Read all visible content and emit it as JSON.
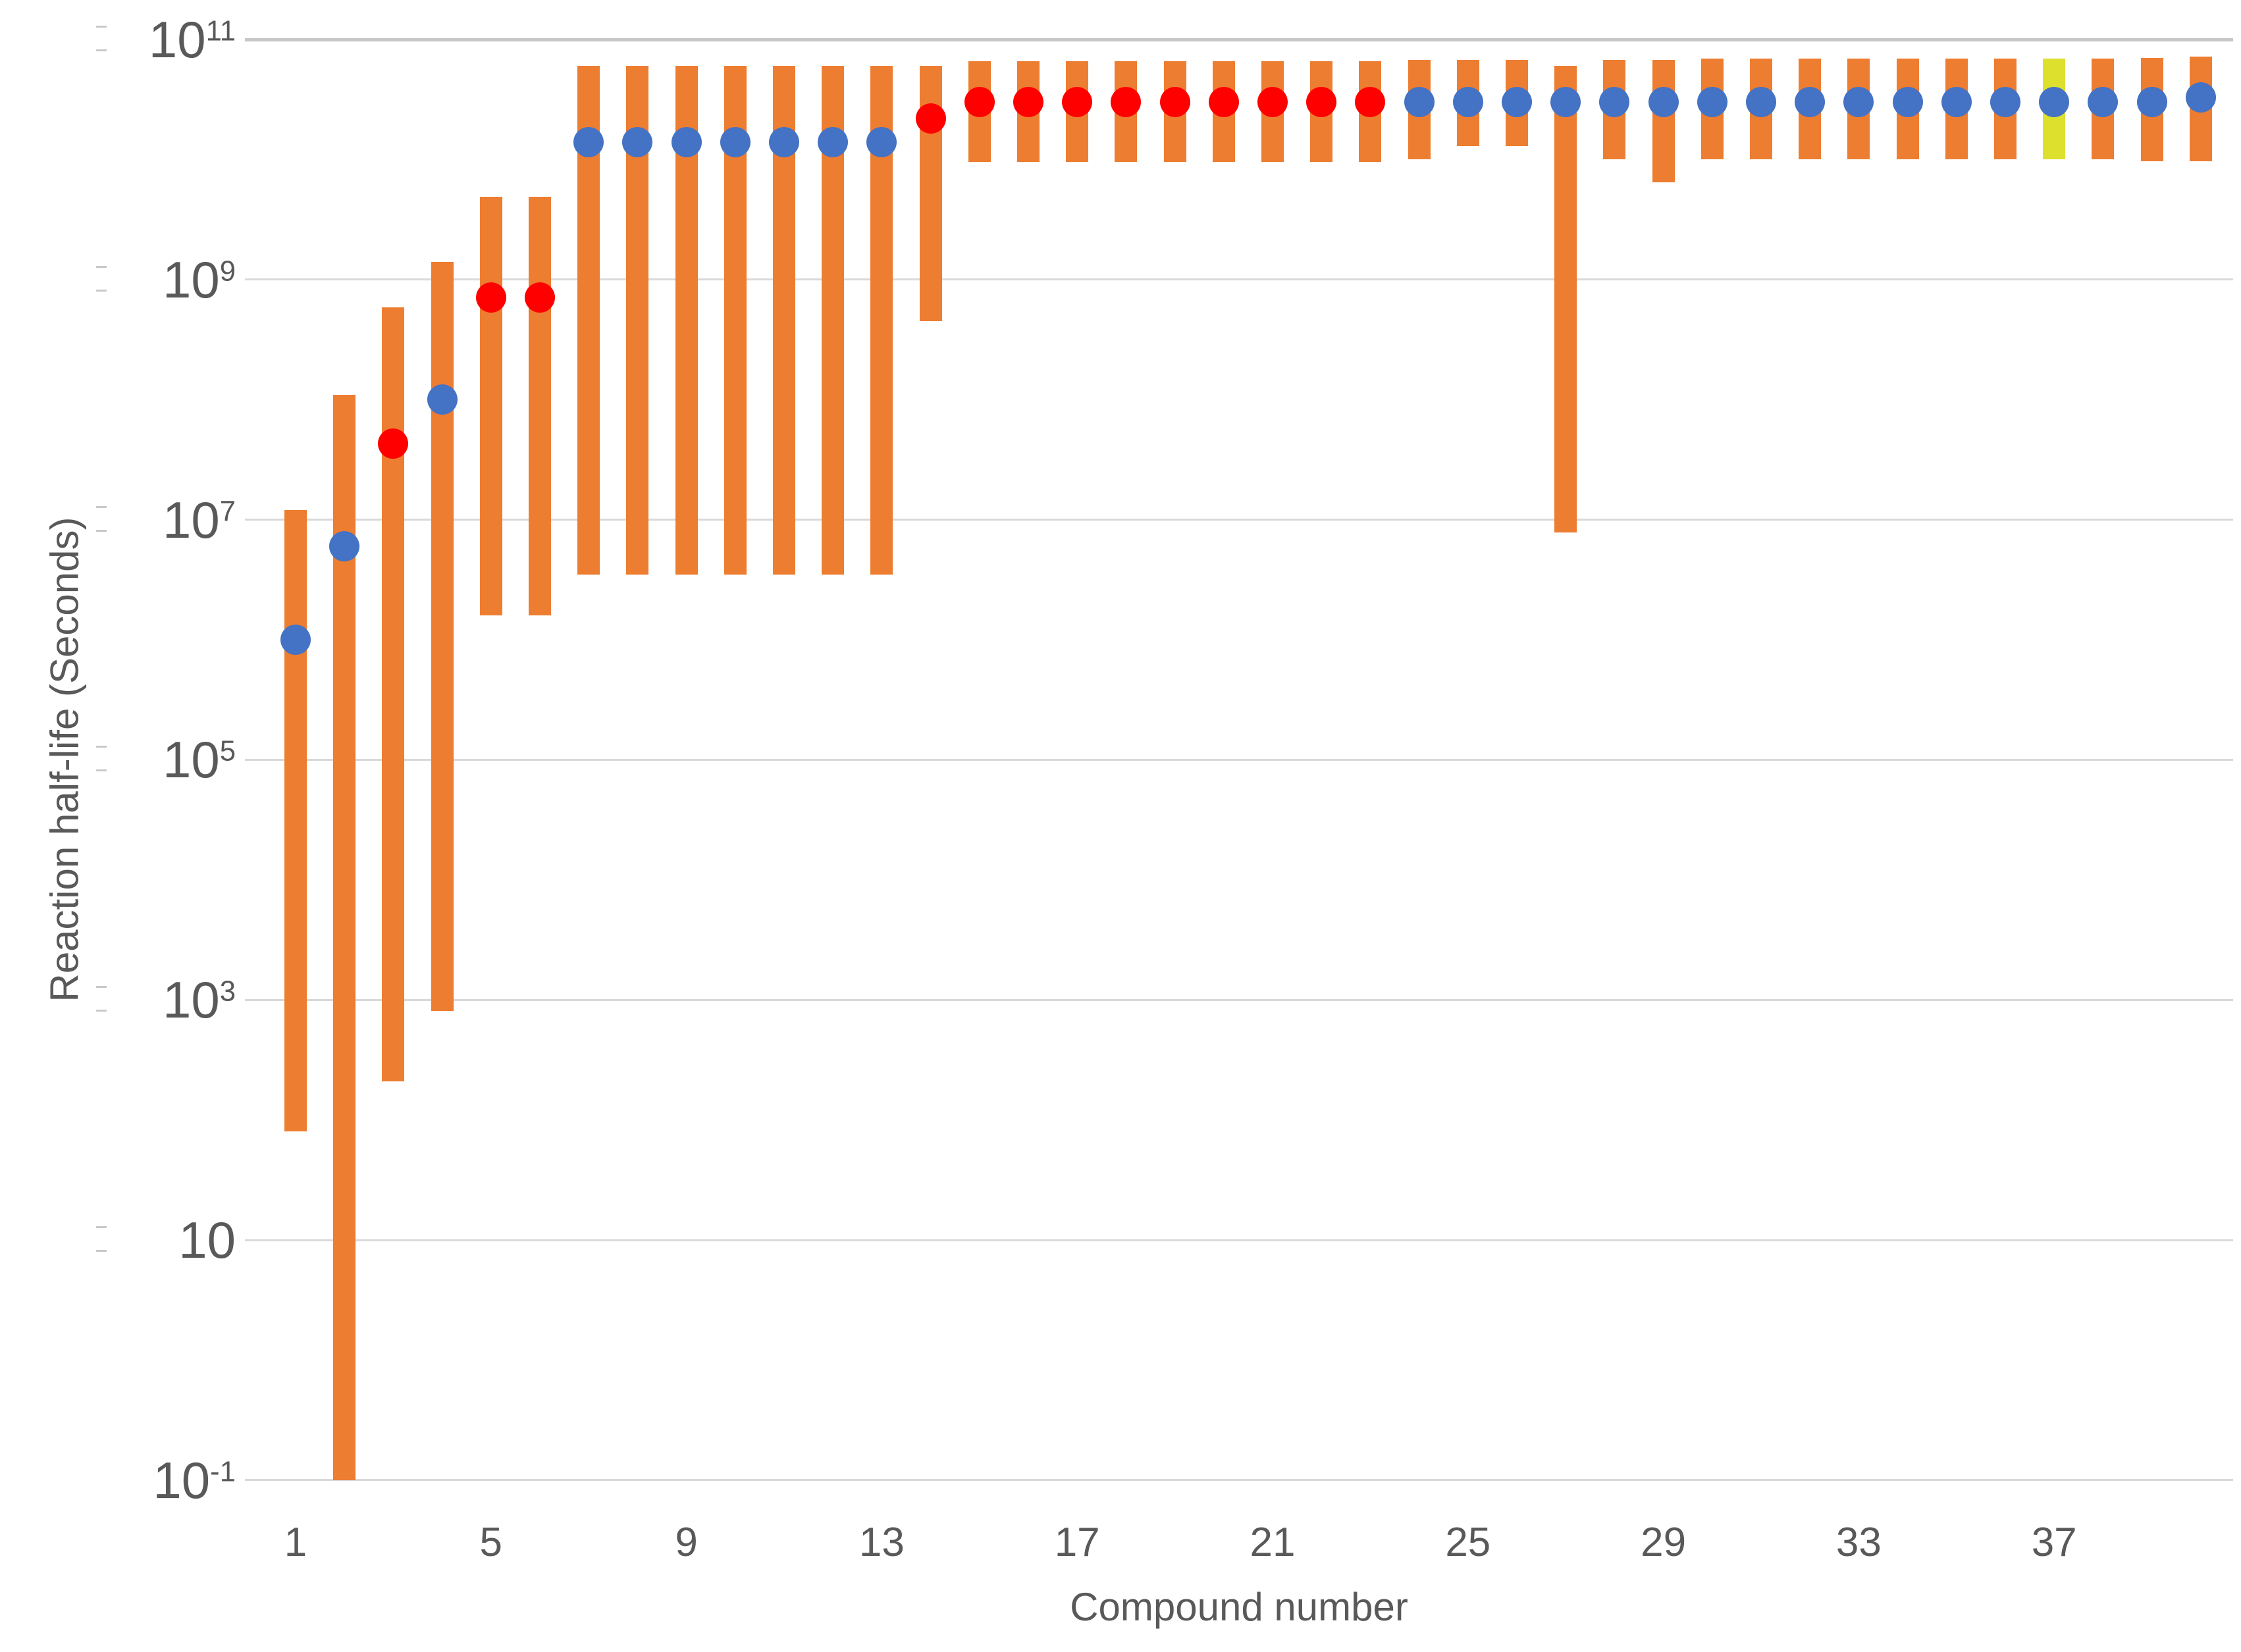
{
  "chart_data": {
    "type": "bar",
    "subtype": "floating-range-bars-with-markers",
    "title": "",
    "xlabel": "Compound number",
    "ylabel": "Reaction half-life (Seconds)",
    "y_scale": "log10",
    "ylim_exp": [
      -1,
      11
    ],
    "y_tick_exponents": [
      11,
      9,
      7,
      5,
      3,
      1,
      -1
    ],
    "x_tick_labels": [
      "1",
      "5",
      "9",
      "13",
      "17",
      "21",
      "25",
      "29",
      "33",
      "37"
    ],
    "grid": true,
    "legend": "none",
    "colors": {
      "bar_orange": "#ED7D31",
      "bar_yellow": "#DDE02C",
      "marker_blue": "#4472C4",
      "marker_red": "#FF0000",
      "gridline": "#D9D9D9",
      "gridline_top": "#C7C7C7",
      "axis_text": "#595959",
      "background": "#FFFFFF"
    },
    "compounds": [
      {
        "n": 1,
        "low": 80.0,
        "high": 12000000.0,
        "marker": 1000000.0,
        "marker_color": "blue",
        "bar": "orange"
      },
      {
        "n": 2,
        "low": 0.1,
        "high": 110000000.0,
        "marker": 6000000.0,
        "marker_color": "blue",
        "bar": "orange"
      },
      {
        "n": 3,
        "low": 210.0,
        "high": 590000000.0,
        "marker": 43000000.0,
        "marker_color": "red",
        "bar": "orange"
      },
      {
        "n": 4,
        "low": 810.0,
        "high": 1400000000.0,
        "marker": 100000000.0,
        "marker_color": "blue",
        "bar": "orange"
      },
      {
        "n": 5,
        "low": 1600000.0,
        "high": 4900000000.0,
        "marker": 710000000.0,
        "marker_color": "red",
        "bar": "orange"
      },
      {
        "n": 6,
        "low": 1600000.0,
        "high": 4900000000.0,
        "marker": 710000000.0,
        "marker_color": "red",
        "bar": "orange"
      },
      {
        "n": 7,
        "low": 3500000.0,
        "high": 60000000000.0,
        "marker": 14000000000.0,
        "marker_color": "blue",
        "bar": "orange"
      },
      {
        "n": 8,
        "low": 3500000.0,
        "high": 60000000000.0,
        "marker": 14000000000.0,
        "marker_color": "blue",
        "bar": "orange"
      },
      {
        "n": 9,
        "low": 3500000.0,
        "high": 60000000000.0,
        "marker": 14000000000.0,
        "marker_color": "blue",
        "bar": "orange"
      },
      {
        "n": 10,
        "low": 3500000.0,
        "high": 60000000000.0,
        "marker": 14000000000.0,
        "marker_color": "blue",
        "bar": "orange"
      },
      {
        "n": 11,
        "low": 3500000.0,
        "high": 60000000000.0,
        "marker": 14000000000.0,
        "marker_color": "blue",
        "bar": "orange"
      },
      {
        "n": 12,
        "low": 3500000.0,
        "high": 60000000000.0,
        "marker": 14000000000.0,
        "marker_color": "blue",
        "bar": "orange"
      },
      {
        "n": 13,
        "low": 3500000.0,
        "high": 60000000000.0,
        "marker": 14000000000.0,
        "marker_color": "blue",
        "bar": "orange"
      },
      {
        "n": 14,
        "low": 450000000.0,
        "high": 60000000000.0,
        "marker": 22000000000.0,
        "marker_color": "red",
        "bar": "orange"
      },
      {
        "n": 15,
        "low": 9500000000.0,
        "high": 66000000000.0,
        "marker": 30000000000.0,
        "marker_color": "red",
        "bar": "orange"
      },
      {
        "n": 16,
        "low": 9500000000.0,
        "high": 66000000000.0,
        "marker": 30000000000.0,
        "marker_color": "red",
        "bar": "orange"
      },
      {
        "n": 17,
        "low": 9500000000.0,
        "high": 66000000000.0,
        "marker": 30000000000.0,
        "marker_color": "red",
        "bar": "orange"
      },
      {
        "n": 18,
        "low": 9500000000.0,
        "high": 66000000000.0,
        "marker": 30000000000.0,
        "marker_color": "red",
        "bar": "orange"
      },
      {
        "n": 19,
        "low": 9500000000.0,
        "high": 66000000000.0,
        "marker": 30000000000.0,
        "marker_color": "red",
        "bar": "orange"
      },
      {
        "n": 20,
        "low": 9500000000.0,
        "high": 66000000000.0,
        "marker": 30000000000.0,
        "marker_color": "red",
        "bar": "orange"
      },
      {
        "n": 21,
        "low": 9500000000.0,
        "high": 66000000000.0,
        "marker": 30000000000.0,
        "marker_color": "red",
        "bar": "orange"
      },
      {
        "n": 22,
        "low": 9500000000.0,
        "high": 66000000000.0,
        "marker": 30000000000.0,
        "marker_color": "red",
        "bar": "orange"
      },
      {
        "n": 23,
        "low": 9500000000.0,
        "high": 66000000000.0,
        "marker": 30000000000.0,
        "marker_color": "red",
        "bar": "orange"
      },
      {
        "n": 24,
        "low": 10000000000.0,
        "high": 68000000000.0,
        "marker": 30000000000.0,
        "marker_color": "blue",
        "bar": "orange"
      },
      {
        "n": 25,
        "low": 13000000000.0,
        "high": 68000000000.0,
        "marker": 30000000000.0,
        "marker_color": "blue",
        "bar": "orange"
      },
      {
        "n": 26,
        "low": 13000000000.0,
        "high": 68000000000.0,
        "marker": 30000000000.0,
        "marker_color": "blue",
        "bar": "orange"
      },
      {
        "n": 27,
        "low": 7800000.0,
        "high": 60000000000.0,
        "marker": 30000000000.0,
        "marker_color": "blue",
        "bar": "orange"
      },
      {
        "n": 28,
        "low": 10000000000.0,
        "high": 68000000000.0,
        "marker": 30000000000.0,
        "marker_color": "blue",
        "bar": "orange"
      },
      {
        "n": 29,
        "low": 6500000000.0,
        "high": 68000000000.0,
        "marker": 30000000000.0,
        "marker_color": "blue",
        "bar": "orange"
      },
      {
        "n": 30,
        "low": 10000000000.0,
        "high": 69000000000.0,
        "marker": 30000000000.0,
        "marker_color": "blue",
        "bar": "orange"
      },
      {
        "n": 31,
        "low": 10000000000.0,
        "high": 69000000000.0,
        "marker": 30000000000.0,
        "marker_color": "blue",
        "bar": "orange"
      },
      {
        "n": 32,
        "low": 10000000000.0,
        "high": 69000000000.0,
        "marker": 30000000000.0,
        "marker_color": "blue",
        "bar": "orange"
      },
      {
        "n": 33,
        "low": 10000000000.0,
        "high": 69000000000.0,
        "marker": 30000000000.0,
        "marker_color": "blue",
        "bar": "orange"
      },
      {
        "n": 34,
        "low": 10000000000.0,
        "high": 69000000000.0,
        "marker": 30000000000.0,
        "marker_color": "blue",
        "bar": "orange"
      },
      {
        "n": 35,
        "low": 10000000000.0,
        "high": 69000000000.0,
        "marker": 30000000000.0,
        "marker_color": "blue",
        "bar": "orange"
      },
      {
        "n": 36,
        "low": 10000000000.0,
        "high": 69000000000.0,
        "marker": 30000000000.0,
        "marker_color": "blue",
        "bar": "orange"
      },
      {
        "n": 37,
        "low": 10000000000.0,
        "high": 69000000000.0,
        "marker": 30000000000.0,
        "marker_color": "blue",
        "bar": "yellow"
      },
      {
        "n": 38,
        "low": 10000000000.0,
        "high": 69000000000.0,
        "marker": 30000000000.0,
        "marker_color": "blue",
        "bar": "orange"
      },
      {
        "n": 39,
        "low": 9700000000.0,
        "high": 70000000000.0,
        "marker": 30000000000.0,
        "marker_color": "blue",
        "bar": "orange"
      },
      {
        "n": 40,
        "low": 9700000000.0,
        "high": 72000000000.0,
        "marker": 33000000000.0,
        "marker_color": "blue",
        "bar": "orange"
      }
    ]
  }
}
